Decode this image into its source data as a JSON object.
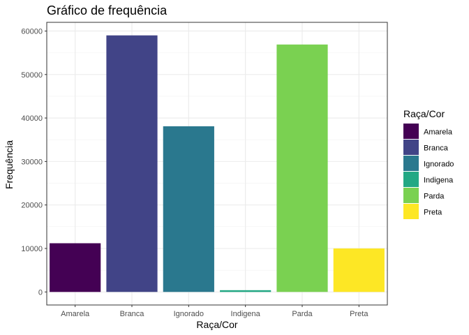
{
  "chart_data": {
    "type": "bar",
    "title": "Gráfico de frequência",
    "xlabel": "Raça/Cor",
    "ylabel": "Frequência",
    "categories": [
      "Amarela",
      "Branca",
      "Ignorado",
      "Indigena",
      "Parda",
      "Preta"
    ],
    "values": [
      11200,
      59000,
      38100,
      400,
      56900,
      10000
    ],
    "colors": [
      "#440154",
      "#414487",
      "#2A788E",
      "#22A884",
      "#7AD151",
      "#FDE725"
    ],
    "ylim": [
      -3000,
      62000
    ],
    "yticks": [
      0,
      10000,
      20000,
      30000,
      40000,
      50000,
      60000
    ],
    "ytick_labels": [
      "0",
      "10000",
      "20000",
      "30000",
      "40000",
      "50000",
      "60000"
    ],
    "grid": true,
    "theme": "bw",
    "legend": {
      "title": "Raça/Cor",
      "position": "right",
      "entries": [
        "Amarela",
        "Branca",
        "Ignorado",
        "Indigena",
        "Parda",
        "Preta"
      ]
    }
  }
}
